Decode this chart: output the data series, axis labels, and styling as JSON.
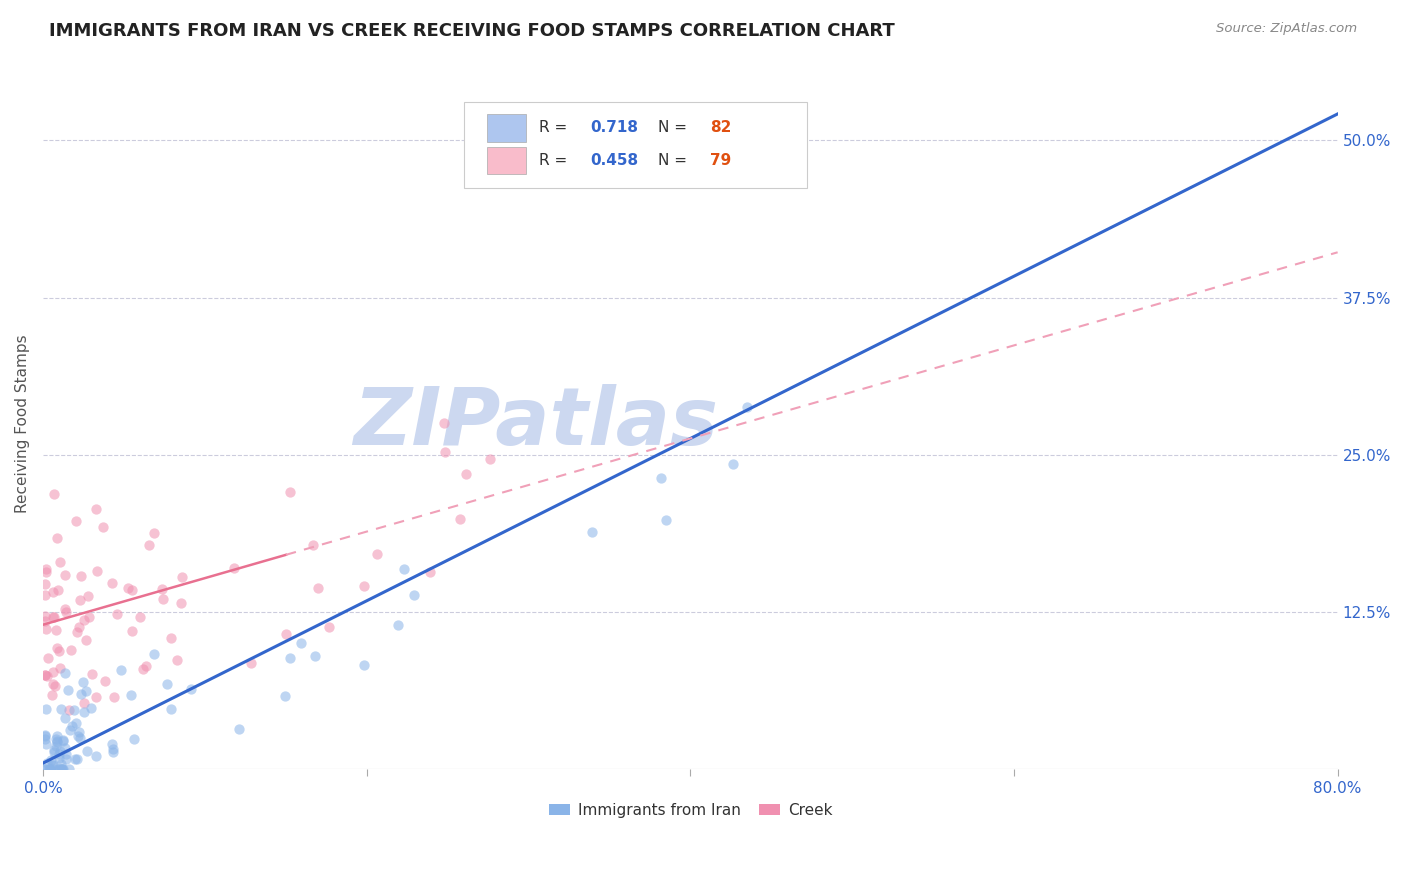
{
  "title": "IMMIGRANTS FROM IRAN VS CREEK RECEIVING FOOD STAMPS CORRELATION CHART",
  "source": "Source: ZipAtlas.com",
  "ylabel": "Receiving Food Stamps",
  "yticks": [
    "12.5%",
    "25.0%",
    "37.5%",
    "50.0%"
  ],
  "ytick_vals": [
    0.125,
    0.25,
    0.375,
    0.5
  ],
  "xlim": [
    0.0,
    0.8
  ],
  "ylim": [
    0.0,
    0.55
  ],
  "legend_entries": [
    {
      "label": "Immigrants from Iran",
      "R": "0.718",
      "N": "82",
      "color": "#aec6ef",
      "dot_color": "#8ab4e8"
    },
    {
      "label": "Creek",
      "R": "0.458",
      "N": "79",
      "color": "#f9bccb",
      "dot_color": "#f090b0"
    }
  ],
  "line_iran_color": "#3366cc",
  "line_creek_solid_color": "#e87090",
  "line_creek_dash_color": "#f0a0b8",
  "watermark": "ZIPatlas",
  "watermark_color": "#ccd8f0",
  "background_color": "#ffffff",
  "grid_color": "#ccccdd",
  "title_fontsize": 13,
  "R_N_color": "#3366cc",
  "N_val_color": "#e05010",
  "axis_tick_color": "#3366cc",
  "xtick_labels": [
    "0.0%",
    "80.0%"
  ],
  "xtick_vals": [
    0.0,
    0.8
  ]
}
